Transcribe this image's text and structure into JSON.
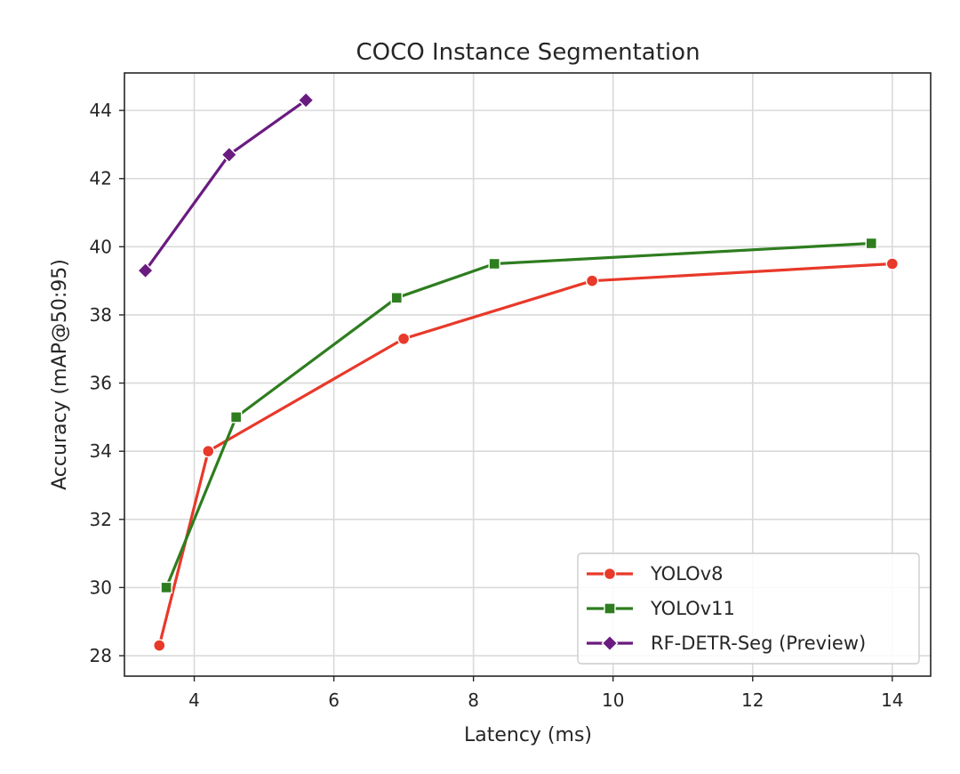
{
  "chart_data": {
    "type": "line",
    "title": "COCO Instance Segmentation",
    "xlabel": "Latency (ms)",
    "ylabel": "Accuracy (mAP@50:95)",
    "xlim": [
      3.0,
      14.55
    ],
    "ylim": [
      27.4,
      45.1
    ],
    "xticks": [
      4,
      6,
      8,
      10,
      12,
      14
    ],
    "yticks": [
      28,
      30,
      32,
      34,
      36,
      38,
      40,
      42,
      44
    ],
    "grid": true,
    "legend_position": "lower-right",
    "series": [
      {
        "name": "YOLOv8",
        "color": "#e8392a",
        "marker": "circle",
        "x": [
          3.5,
          4.2,
          7.0,
          9.7,
          14.0
        ],
        "y": [
          28.3,
          34.0,
          37.3,
          39.0,
          39.5
        ]
      },
      {
        "name": "YOLOv11",
        "color": "#2e7d1f",
        "marker": "square",
        "x": [
          3.6,
          4.6,
          6.9,
          8.3,
          13.7
        ],
        "y": [
          30.0,
          35.0,
          38.5,
          39.5,
          40.1
        ]
      },
      {
        "name": "RF-DETR-Seg (Preview)",
        "color": "#6a1b80",
        "marker": "diamond",
        "x": [
          3.3,
          4.5,
          5.6
        ],
        "y": [
          39.3,
          42.7,
          44.3
        ]
      }
    ]
  }
}
